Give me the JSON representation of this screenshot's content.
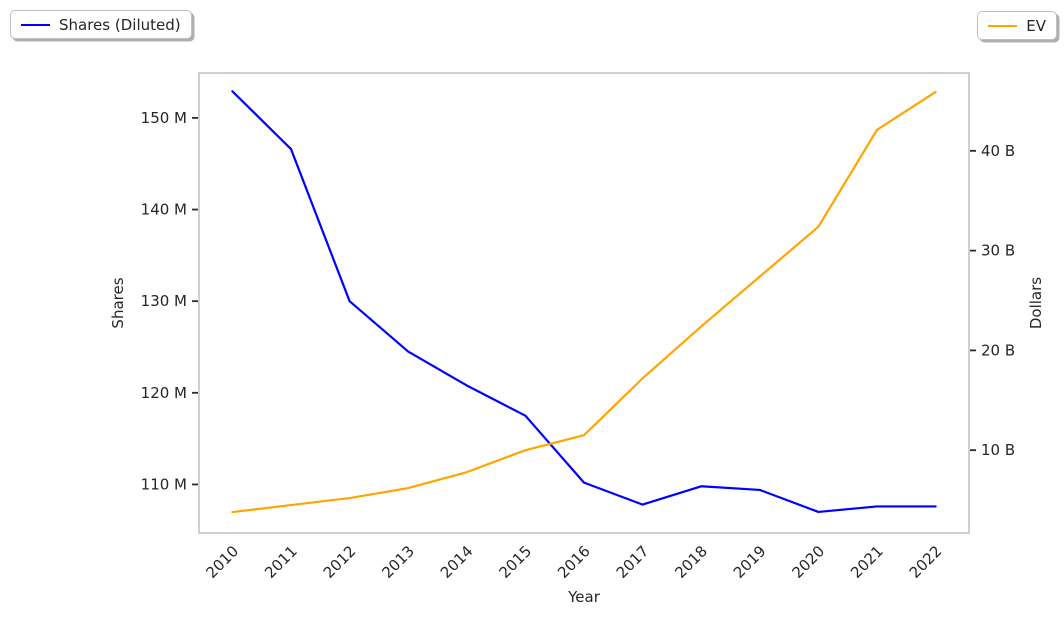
{
  "chart_data": {
    "type": "line",
    "title": "",
    "xlabel": "Year",
    "ylabel_left": "Shares",
    "ylabel_right": "Dollars",
    "categories": [
      "2010",
      "2011",
      "2012",
      "2013",
      "2014",
      "2015",
      "2016",
      "2017",
      "2018",
      "2019",
      "2020",
      "2021",
      "2022"
    ],
    "series": [
      {
        "name": "Shares (Diluted)",
        "axis": "left",
        "color": "#0000ff",
        "unit": "millions of shares",
        "values": [
          152.9,
          146.6,
          130.0,
          124.5,
          120.8,
          117.5,
          110.2,
          107.8,
          109.8,
          109.4,
          107.0,
          107.6,
          107.6
        ]
      },
      {
        "name": "EV",
        "axis": "right",
        "color": "#ffa500",
        "unit": "billions of dollars",
        "values": [
          3.8,
          4.5,
          5.2,
          6.2,
          7.8,
          10.0,
          11.5,
          17.2,
          22.4,
          27.4,
          32.4,
          42.1,
          45.9
        ]
      }
    ],
    "left_axis": {
      "label": "Shares",
      "ticks": [
        110,
        120,
        130,
        140,
        150
      ],
      "tick_suffix": " M",
      "lim": [
        104.7,
        154.9
      ]
    },
    "right_axis": {
      "label": "Dollars",
      "ticks": [
        10,
        20,
        30,
        40
      ],
      "tick_suffix": " B",
      "lim": [
        1.7,
        47.8
      ]
    },
    "x_axis": {
      "label": "Year",
      "pad_units": 0.57,
      "tick_rotation_deg": 45
    },
    "legend_position": "top-left and top-right, outside plot",
    "grid": false
  }
}
